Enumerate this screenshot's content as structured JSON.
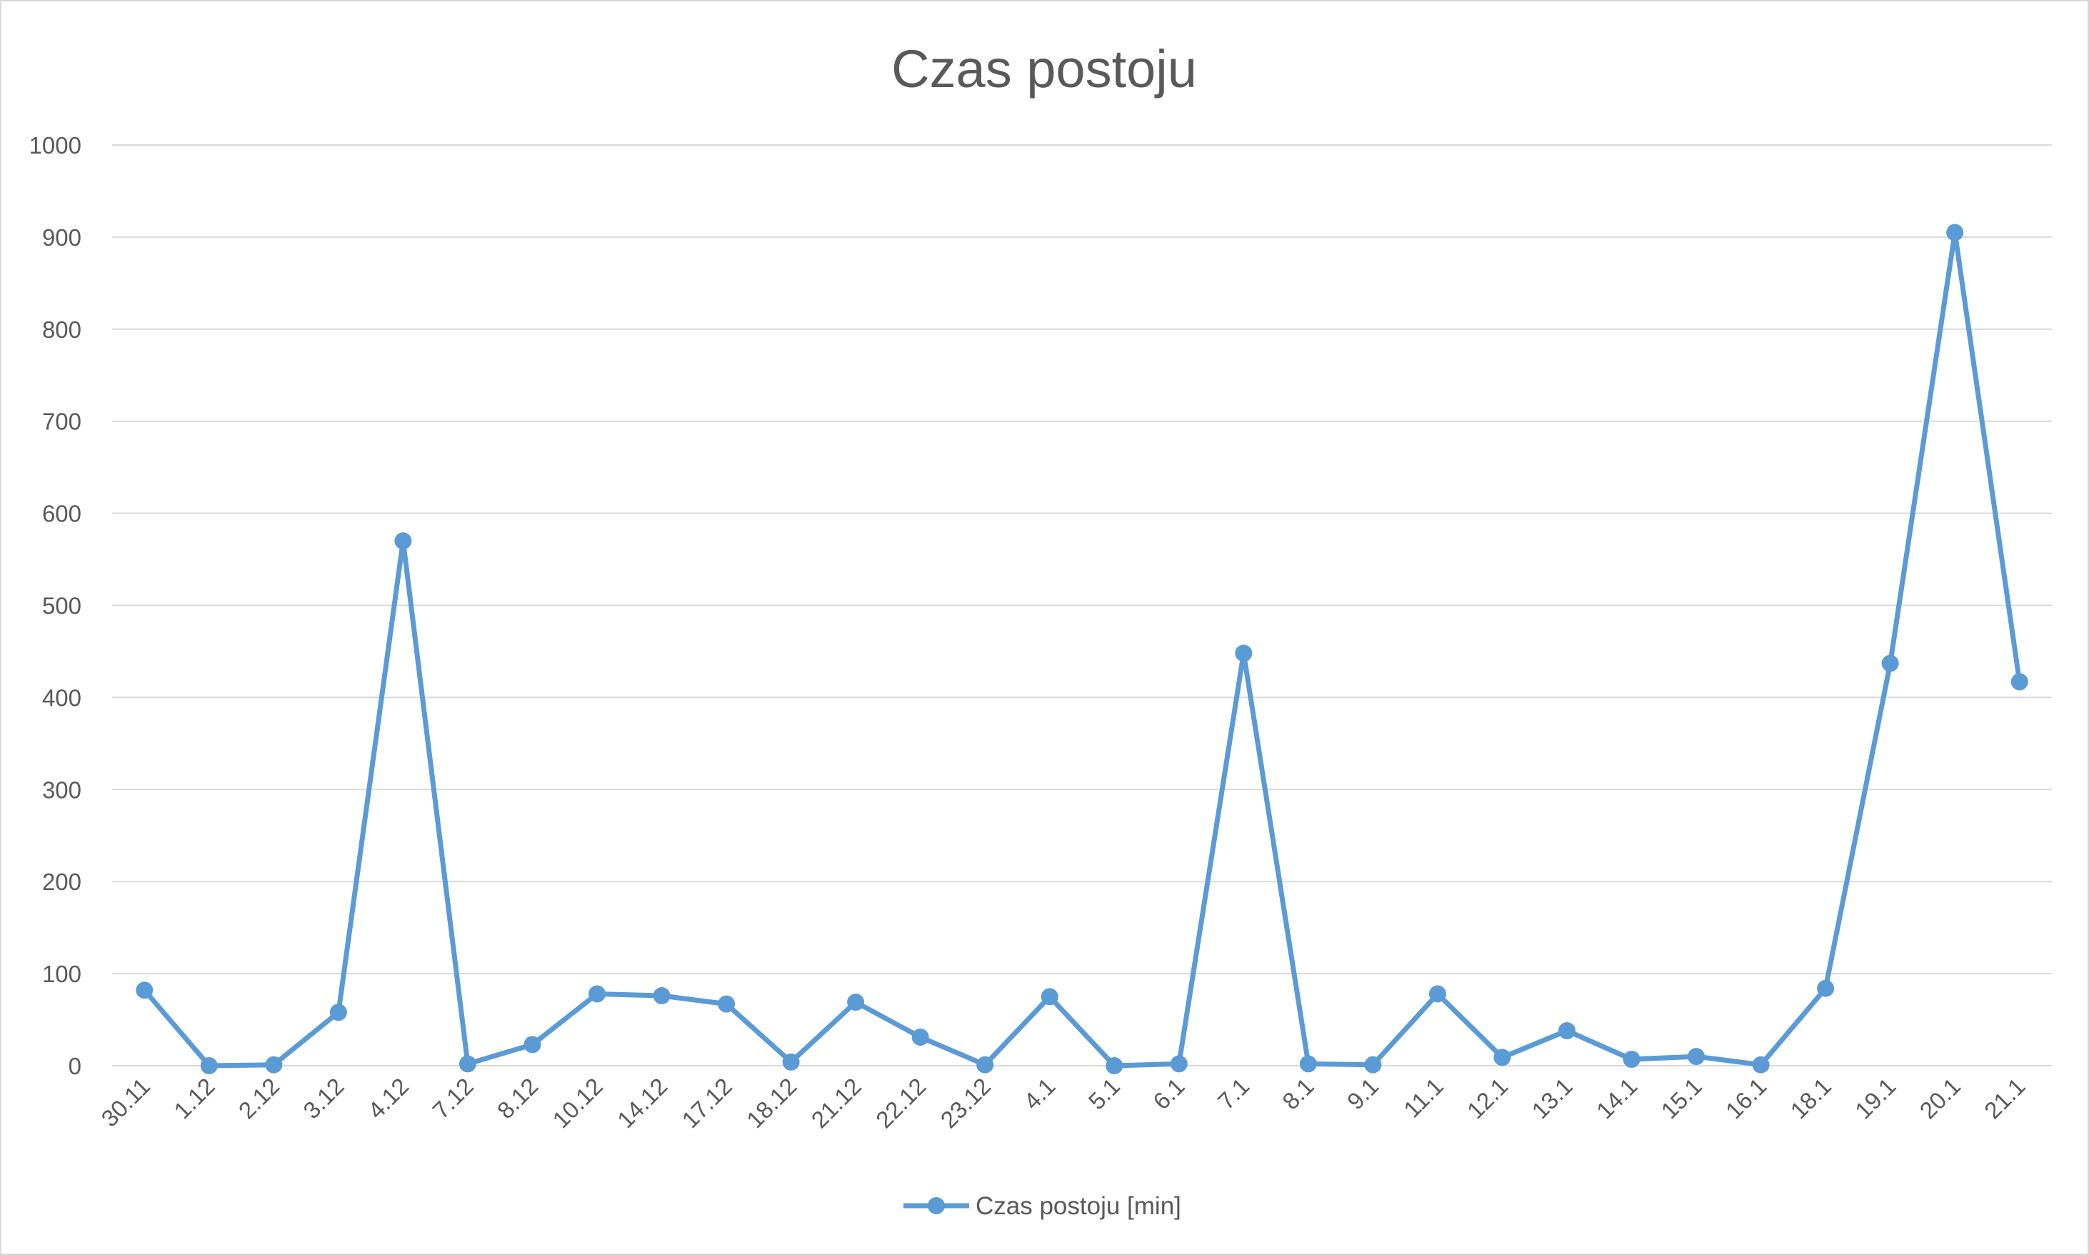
{
  "chart_data": {
    "type": "line",
    "title": "Czas postoju",
    "xlabel": "",
    "ylabel": "",
    "ylim": [
      0,
      1000
    ],
    "yticks": [
      "0",
      "100",
      "200",
      "300",
      "400",
      "500",
      "600",
      "700",
      "800",
      "900",
      "1000"
    ],
    "grid": true,
    "legend_position": "bottom",
    "categories": [
      "30.11",
      "1.12",
      "2.12",
      "3.12",
      "4.12",
      "7.12",
      "8.12",
      "10.12",
      "14.12",
      "17.12",
      "18.12",
      "21.12",
      "22.12",
      "23.12",
      "4.1",
      "5.1",
      "6.1",
      "7.1",
      "8.1",
      "9.1",
      "11.1",
      "12.1",
      "13.1",
      "14.1",
      "15.1",
      "16.1",
      "18.1",
      "19.1",
      "20.1",
      "21.1"
    ],
    "series": [
      {
        "name": "Czas postoju [min]",
        "color": "#5b9bd5",
        "values": [
          82,
          0,
          1,
          58,
          570,
          2,
          23,
          78,
          76,
          67,
          4,
          69,
          31,
          1,
          75,
          0,
          2,
          448,
          2,
          1,
          78,
          9,
          38,
          7,
          10,
          1,
          84,
          437,
          905,
          417
        ]
      }
    ]
  }
}
